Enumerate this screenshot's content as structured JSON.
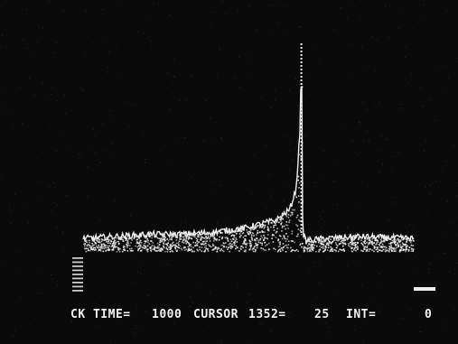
{
  "screen": {
    "background": "#0a0a0a",
    "trace_color": "#eeeeee"
  },
  "readout": {
    "time_label": "CK TIME=",
    "time_value": "1000",
    "cursor_label": "CURSOR",
    "cursor_value": "1352=",
    "cursor_counts": "25",
    "int_label": "INT=",
    "int_value": "0"
  },
  "chart_data": {
    "type": "line",
    "title": "",
    "xlabel": "",
    "ylabel": "",
    "grid": false,
    "legend": "none",
    "xlim": [
      0,
      2048
    ],
    "ylim": [
      0,
      100
    ],
    "baseline_level": 8,
    "series": [
      {
        "x": [
          0,
          200,
          400,
          600,
          800,
          1000,
          1100,
          1200,
          1280,
          1320,
          1345,
          1352,
          1360,
          1380,
          1500,
          1700,
          2048
        ],
        "values": [
          6,
          7,
          8,
          8,
          9,
          11,
          13,
          15,
          20,
          30,
          60,
          100,
          10,
          5,
          6,
          7,
          6
        ]
      }
    ]
  }
}
